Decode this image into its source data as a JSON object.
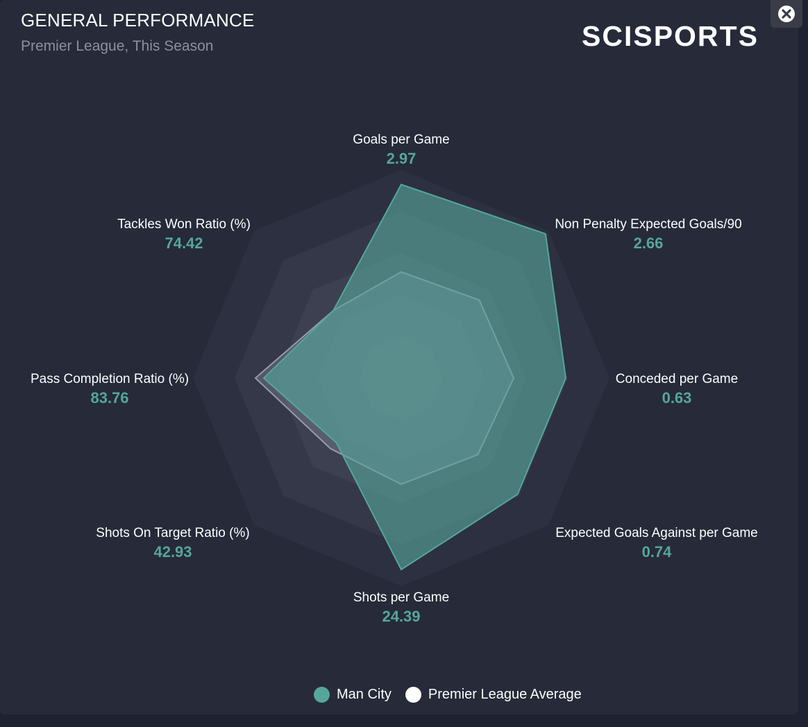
{
  "header": {
    "title": "GENERAL PERFORMANCE",
    "subtitle": "Premier League, This Season",
    "brand": "SCISPORTS"
  },
  "icons": {
    "close": "close-icon"
  },
  "colors": {
    "background": "#262a39",
    "series_primary": "#55a69b",
    "series_average": "#ffffff"
  },
  "chart_data": {
    "type": "radar",
    "title": "GENERAL PERFORMANCE",
    "subtitle": "Premier League, This Season",
    "axes": [
      {
        "label": "Goals per Game",
        "value": "2.97"
      },
      {
        "label": "Non Penalty Expected Goals/90",
        "value": "2.66"
      },
      {
        "label": "Conceded per Game",
        "value": "0.63"
      },
      {
        "label": "Expected Goals Against per Game",
        "value": "0.74"
      },
      {
        "label": "Shots per Game",
        "value": "24.39"
      },
      {
        "label": "Shots On Target Ratio (%)",
        "value": "42.93"
      },
      {
        "label": "Pass Completion Ratio (%)",
        "value": "83.76"
      },
      {
        "label": "Tackles Won Ratio (%)",
        "value": "74.42"
      }
    ],
    "series": [
      {
        "name": "Man City",
        "color": "#55a69b",
        "normalized": [
          0.93,
          0.98,
          0.79,
          0.79,
          0.92,
          0.44,
          0.66,
          0.46
        ]
      },
      {
        "name": "Premier League Average",
        "color": "#ffffff",
        "normalized": [
          0.51,
          0.53,
          0.54,
          0.52,
          0.51,
          0.48,
          0.7,
          0.46
        ]
      }
    ],
    "rings": 5,
    "legend": "bottom-center"
  }
}
